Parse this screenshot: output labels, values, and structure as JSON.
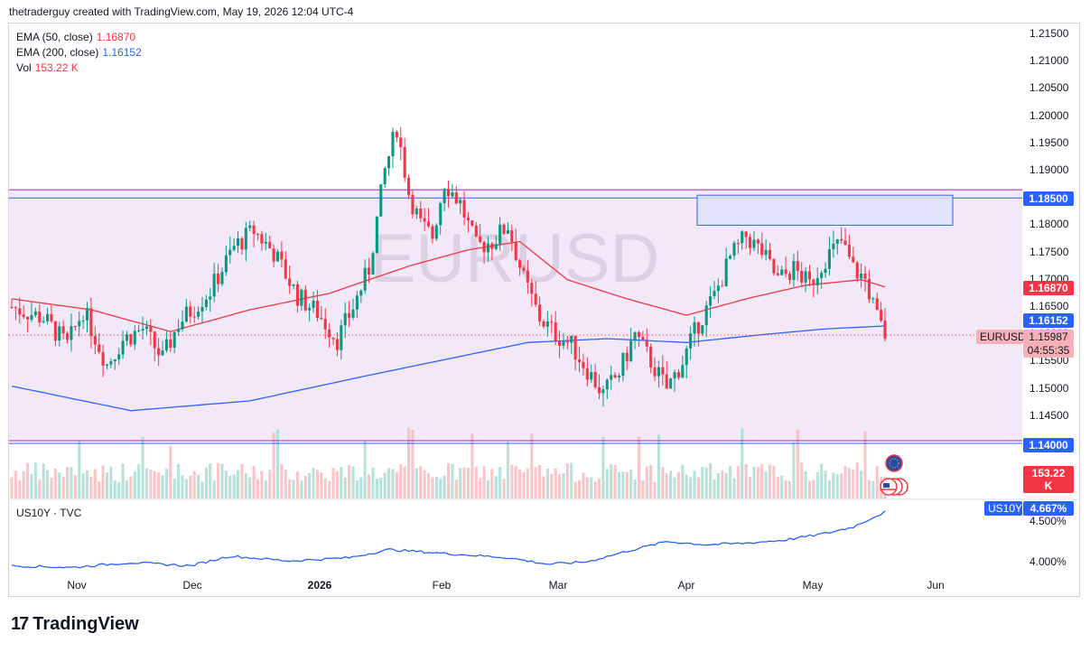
{
  "header": {
    "attribution": "thetraderguy created with TradingView.com, May 19, 2026 12:04 UTC-4"
  },
  "legend": {
    "ema50": {
      "label": "EMA (50, close)",
      "value": "1.16870",
      "color": "#f23645"
    },
    "ema200": {
      "label": "EMA (200, close)",
      "value": "1.16152",
      "color": "#2962ff"
    },
    "vol": {
      "label": "Vol",
      "value": "153.22 K",
      "color": "#f23645"
    }
  },
  "watermark": "EURUSD",
  "price_axis": {
    "ticks": [
      "1.21500",
      "1.21000",
      "1.20500",
      "1.20000",
      "1.19500",
      "1.19000",
      "1.18500",
      "1.18000",
      "1.17500",
      "1.17000",
      "1.16500",
      "1.16000",
      "1.15500",
      "1.15000",
      "1.14500",
      "1.14000"
    ],
    "labels": {
      "level_high": "1.18500",
      "ema50": "1.16870",
      "ema200": "1.16152",
      "symbol": "EURUSD",
      "last": "1.15987",
      "countdown": "04:55:35",
      "level_low": "1.14000",
      "volume": "153.22 K"
    }
  },
  "sub_pane": {
    "title": "US10Y · TVC",
    "symbol_label": "US10Y",
    "value_label": "4.667%",
    "ticks": [
      "4.500%",
      "4.000%"
    ]
  },
  "time_axis": [
    "Nov",
    "Dec",
    "2026",
    "Feb",
    "Mar",
    "Apr",
    "May",
    "Jun"
  ],
  "footer": {
    "brand": "TradingView",
    "mark": "17"
  },
  "colors": {
    "up": "#089981",
    "down": "#f23645",
    "range_fill": "#f3e5f5",
    "level": "#2962ff",
    "zone": "#dbe3ff"
  },
  "chart_data": {
    "type": "candlestick",
    "symbol": "EURUSD",
    "ylim": [
      1.1375,
      1.2165
    ],
    "levels": [
      1.185,
      1.14
    ],
    "zone": [
      1.18,
      1.1855
    ],
    "x_labels": [
      "Nov",
      "Dec",
      "2026",
      "Feb",
      "Mar",
      "Apr",
      "May",
      "Jun"
    ],
    "swings": [
      [
        0,
        1.165
      ],
      [
        8,
        1.163
      ],
      [
        14,
        1.158
      ],
      [
        18,
        1.1645
      ],
      [
        24,
        1.1545
      ],
      [
        28,
        1.159
      ],
      [
        33,
        1.161
      ],
      [
        38,
        1.1555
      ],
      [
        42,
        1.162
      ],
      [
        50,
        1.168
      ],
      [
        56,
        1.176
      ],
      [
        61,
        1.179
      ],
      [
        66,
        1.175
      ],
      [
        72,
        1.167
      ],
      [
        77,
        1.164
      ],
      [
        82,
        1.159
      ],
      [
        86,
        1.165
      ],
      [
        90,
        1.172
      ],
      [
        94,
        1.19
      ],
      [
        97,
        1.198
      ],
      [
        100,
        1.186
      ],
      [
        103,
        1.18
      ],
      [
        106,
        1.178
      ],
      [
        109,
        1.188
      ],
      [
        113,
        1.184
      ],
      [
        117,
        1.176
      ],
      [
        121,
        1.177
      ],
      [
        125,
        1.18
      ],
      [
        129,
        1.17
      ],
      [
        133,
        1.163
      ],
      [
        137,
        1.16
      ],
      [
        141,
        1.158
      ],
      [
        145,
        1.1535
      ],
      [
        149,
        1.149
      ],
      [
        153,
        1.153
      ],
      [
        157,
        1.16
      ],
      [
        161,
        1.155
      ],
      [
        165,
        1.15
      ],
      [
        169,
        1.155
      ],
      [
        173,
        1.162
      ],
      [
        177,
        1.167
      ],
      [
        181,
        1.174
      ],
      [
        185,
        1.178
      ],
      [
        189,
        1.175
      ],
      [
        193,
        1.17
      ],
      [
        197,
        1.172
      ],
      [
        201,
        1.169
      ],
      [
        205,
        1.174
      ],
      [
        209,
        1.177
      ],
      [
        212,
        1.172
      ],
      [
        215,
        1.17
      ],
      [
        218,
        1.163
      ],
      [
        220,
        1.1599
      ]
    ],
    "ema50": [
      [
        0,
        1.1665
      ],
      [
        20,
        1.1645
      ],
      [
        40,
        1.1605
      ],
      [
        60,
        1.1645
      ],
      [
        80,
        1.1675
      ],
      [
        100,
        1.1725
      ],
      [
        115,
        1.1755
      ],
      [
        128,
        1.177
      ],
      [
        140,
        1.17
      ],
      [
        155,
        1.1665
      ],
      [
        170,
        1.1635
      ],
      [
        185,
        1.1665
      ],
      [
        200,
        1.169
      ],
      [
        214,
        1.17
      ],
      [
        220,
        1.1687
      ]
    ],
    "ema200": [
      [
        0,
        1.1505
      ],
      [
        30,
        1.146
      ],
      [
        60,
        1.1478
      ],
      [
        90,
        1.1525
      ],
      [
        110,
        1.1555
      ],
      [
        130,
        1.1585
      ],
      [
        150,
        1.1592
      ],
      [
        170,
        1.1585
      ],
      [
        190,
        1.16
      ],
      [
        205,
        1.161
      ],
      [
        220,
        1.16152
      ]
    ],
    "volume": {
      "base_last": "153.22 K"
    },
    "us10y": {
      "ylim": [
        3.85,
        4.72
      ],
      "points": [
        [
          0,
          4.0
        ],
        [
          15,
          3.98
        ],
        [
          30,
          4.04
        ],
        [
          45,
          4.0
        ],
        [
          55,
          4.12
        ],
        [
          70,
          4.06
        ],
        [
          85,
          4.1
        ],
        [
          95,
          4.2
        ],
        [
          110,
          4.15
        ],
        [
          125,
          4.1
        ],
        [
          135,
          4.02
        ],
        [
          145,
          4.05
        ],
        [
          155,
          4.18
        ],
        [
          165,
          4.3
        ],
        [
          175,
          4.26
        ],
        [
          185,
          4.28
        ],
        [
          195,
          4.32
        ],
        [
          205,
          4.4
        ],
        [
          212,
          4.48
        ],
        [
          220,
          4.667
        ]
      ]
    }
  }
}
